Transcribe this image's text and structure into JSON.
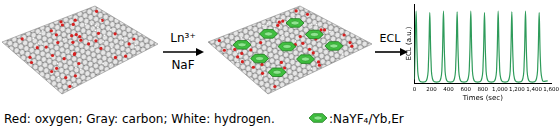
{
  "diagram": {
    "arrows": [
      {
        "above": "Ln³⁺",
        "below": "NaF"
      },
      {
        "above": "ECL"
      }
    ],
    "legend": {
      "atoms": "Red: oxygen; Gray: carbon; White: hydrogen.",
      "particle": ":NaYF₄/Yb,Er"
    }
  },
  "chart_data": {
    "type": "line",
    "x_label": "Times (sec)",
    "y_label": "ECL (a.u.)",
    "x": [
      0,
      5,
      20,
      35,
      60,
      140,
      165,
      180,
      195,
      220,
      300,
      325,
      340,
      355,
      380,
      460,
      485,
      500,
      515,
      540,
      620,
      645,
      660,
      675,
      700,
      780,
      805,
      820,
      835,
      860,
      940,
      965,
      980,
      995,
      1020,
      1100,
      1125,
      1140,
      1155,
      1180,
      1260,
      1285,
      1300,
      1315,
      1340,
      1420,
      1445,
      1460,
      1475,
      1500,
      1560
    ],
    "values": [
      0.05,
      0.3,
      1,
      0.3,
      0.03,
      0.03,
      0.3,
      0.98,
      0.3,
      0.03,
      0.03,
      0.3,
      1,
      0.3,
      0.03,
      0.03,
      0.3,
      0.99,
      0.3,
      0.03,
      0.03,
      0.3,
      1,
      0.3,
      0.03,
      0.03,
      0.3,
      0.98,
      0.3,
      0.03,
      0.03,
      0.3,
      1,
      0.3,
      0.03,
      0.03,
      0.3,
      0.99,
      0.3,
      0.03,
      0.03,
      0.3,
      1,
      0.3,
      0.03,
      0.03,
      0.3,
      0.98,
      0.3,
      0.03,
      0.03
    ],
    "color": "#2e9b5a",
    "xlim": [
      0,
      1600
    ],
    "xticks": [
      0,
      200,
      400,
      600,
      800,
      1000,
      1200,
      1400,
      1600
    ],
    "ylim": [
      0,
      1.1
    ],
    "tick_labels": "x",
    "grid": false
  }
}
